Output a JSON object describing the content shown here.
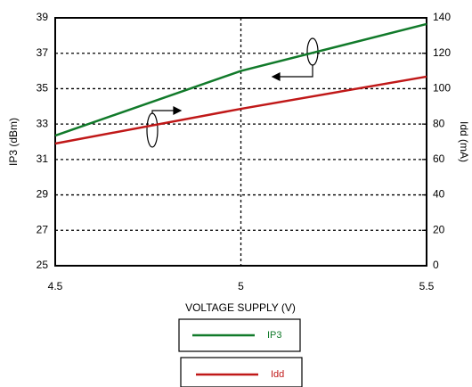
{
  "chart_data": {
    "type": "line",
    "xlabel": "VOLTAGE SUPPLY (V)",
    "ylabel": "IP3 (dBm)",
    "y2label": "Idd (mA)",
    "x": [
      4.5,
      5,
      5.5
    ],
    "series": [
      {
        "name": "IP3",
        "color": "#117a2a",
        "values": [
          32.35,
          36,
          38.65
        ]
      },
      {
        "name": "Idd",
        "color": "#c01818",
        "values": [
          69,
          88.6,
          106.8
        ],
        "axis": "y2"
      }
    ],
    "xlim": [
      4.5,
      5.5
    ],
    "xticks": [
      4.5,
      5,
      5.5
    ],
    "ylim": [
      25,
      39
    ],
    "yticks": [
      25,
      27,
      29,
      31,
      33,
      35,
      37,
      39
    ],
    "y2lim": [
      0,
      140
    ],
    "y2ticks": [
      0,
      20,
      40,
      60,
      80,
      100,
      120,
      140
    ],
    "grid": true
  }
}
